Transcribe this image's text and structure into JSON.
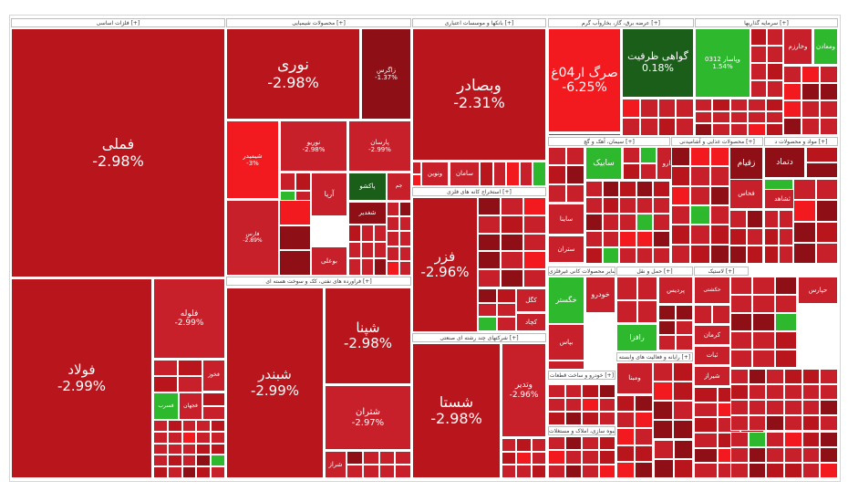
{
  "colors": {
    "strong_red": "#b8161c",
    "mid_red": "#c8202a",
    "dark_red": "#8e0f15",
    "bright_red": "#f21a1f",
    "dark_green": "#1a5e1a",
    "green": "#2eb82e",
    "grid_line": "#ffffff"
  },
  "chart_data": {
    "type": "heatmap",
    "sectors": [
      {
        "label": "فلزات اساسی [+]"
      },
      {
        "label": "محصولات شیمیایی [+]"
      },
      {
        "label": "بانکها و موسسات اعتباری [+]"
      },
      {
        "label": "عرضه برق، گاز، بخاروآب گرم [+]"
      },
      {
        "label": "سرمایه گذاریها [+]"
      },
      {
        "label": "فراورده های نفتی، کک و سوخت هسته ای [+]"
      },
      {
        "label": "استخراج کانه های فلزی [+]"
      },
      {
        "label": "شرکتهای چند رشته ای صنعتی [+]"
      },
      {
        "label": "سیمان، آهک و گچ [+]"
      },
      {
        "label": "محصولات غذایی و آشامیدنی [+]"
      },
      {
        "label": "مواد و محصولات د [+]"
      },
      {
        "label": "خودرو و ساخت قطعات [+]"
      },
      {
        "label": "رایانه و فعالیت های وابسته [+]"
      },
      {
        "label": "انبوه سازی، املاک و مستغلات [+]"
      },
      {
        "label": "سایر محصولات کانی غیرفلزی [+]"
      },
      {
        "label": "حمل و نقل [+]"
      },
      {
        "label": "لاستیک [+]"
      }
    ],
    "tiles": [
      {
        "symbol": "فملی",
        "change": "-2.98%",
        "value": -2.98,
        "tone": "strong_red"
      },
      {
        "symbol": "فولاد",
        "change": "-2.99%",
        "value": -2.99,
        "tone": "strong_red"
      },
      {
        "symbol": "فلوله",
        "change": "-2.99%",
        "value": -2.99,
        "tone": "mid_red"
      },
      {
        "symbol": "فخوز",
        "change": "",
        "value": null,
        "tone": "mid_red"
      },
      {
        "symbol": "فجهان",
        "change": "",
        "value": null,
        "tone": "mid_red"
      },
      {
        "symbol": "فسرب",
        "change": "",
        "value": null,
        "tone": "green"
      },
      {
        "symbol": "نوری",
        "change": "-2.98%",
        "value": -2.98,
        "tone": "strong_red"
      },
      {
        "symbol": "زاگرس",
        "change": "-1.37%",
        "value": -1.37,
        "tone": "dark_red"
      },
      {
        "symbol": "شیمیدر",
        "change": "-3%",
        "value": -3.0,
        "tone": "bright_red"
      },
      {
        "symbol": "نوریو",
        "change": "-2.98%",
        "value": -2.98,
        "tone": "mid_red"
      },
      {
        "symbol": "پارسان",
        "change": "-2.99%",
        "value": -2.99,
        "tone": "mid_red"
      },
      {
        "symbol": "فارس",
        "change": "-2.89%",
        "value": -2.89,
        "tone": "mid_red"
      },
      {
        "symbol": "آریا",
        "change": "",
        "value": null,
        "tone": "mid_red"
      },
      {
        "symbol": "پاکشو",
        "change": "",
        "value": null,
        "tone": "dark_green"
      },
      {
        "symbol": "شغدیر",
        "change": "",
        "value": null,
        "tone": "dark_red"
      },
      {
        "symbol": "جم",
        "change": "",
        "value": null,
        "tone": "mid_red"
      },
      {
        "symbol": "بوعلی",
        "change": "",
        "value": null,
        "tone": "mid_red"
      },
      {
        "symbol": "وبصادر",
        "change": "-2.31%",
        "value": -2.31,
        "tone": "strong_red"
      },
      {
        "symbol": "سامان",
        "change": "",
        "value": null,
        "tone": "mid_red"
      },
      {
        "symbol": "ونوین",
        "change": "",
        "value": null,
        "tone": "mid_red"
      },
      {
        "symbol": "صرگ ار04غ",
        "change": "-6.25%",
        "value": -6.25,
        "tone": "bright_red"
      },
      {
        "symbol": "گواهی ظرفیت",
        "change": "0.18%",
        "value": 0.18,
        "tone": "dark_green"
      },
      {
        "symbol": "وپاسار 0312",
        "change": "1.54%",
        "value": 1.54,
        "tone": "green"
      },
      {
        "symbol": "وخارزم",
        "change": "",
        "value": null,
        "tone": "mid_red"
      },
      {
        "symbol": "ومعادن",
        "change": "",
        "value": null,
        "tone": "green"
      },
      {
        "symbol": "شپنا",
        "change": "-2.98%",
        "value": -2.98,
        "tone": "strong_red"
      },
      {
        "symbol": "شبندر",
        "change": "-2.99%",
        "value": -2.99,
        "tone": "strong_red"
      },
      {
        "symbol": "شتران",
        "change": "-2.97%",
        "value": -2.97,
        "tone": "mid_red"
      },
      {
        "symbol": "شراز",
        "change": "",
        "value": null,
        "tone": "mid_red"
      },
      {
        "symbol": "فزر",
        "change": "-2.96%",
        "value": -2.96,
        "tone": "strong_red"
      },
      {
        "symbol": "کگل",
        "change": "",
        "value": null,
        "tone": "mid_red"
      },
      {
        "symbol": "کچاد",
        "change": "",
        "value": null,
        "tone": "mid_red"
      },
      {
        "symbol": "شستا",
        "change": "-2.98%",
        "value": -2.98,
        "tone": "strong_red"
      },
      {
        "symbol": "وتدیر",
        "change": "-2.96%",
        "value": -2.96,
        "tone": "mid_red"
      },
      {
        "symbol": "ساینا",
        "change": "",
        "value": null,
        "tone": "mid_red"
      },
      {
        "symbol": "ستران",
        "change": "",
        "value": null,
        "tone": "mid_red"
      },
      {
        "symbol": "سابیک",
        "change": "",
        "value": null,
        "tone": "green"
      },
      {
        "symbol": "دتماد",
        "change": "",
        "value": null,
        "tone": "dark_red"
      },
      {
        "symbol": "غشهداب",
        "change": "",
        "value": null,
        "tone": "green"
      },
      {
        "symbol": "زقیام",
        "change": "",
        "value": null,
        "tone": "dark_red"
      },
      {
        "symbol": "خگستر",
        "change": "",
        "value": null,
        "tone": "green"
      },
      {
        "symbol": "خودرو",
        "change": "",
        "value": null,
        "tone": "mid_red"
      },
      {
        "symbol": "رافزا",
        "change": "",
        "value": null,
        "tone": "green"
      },
      {
        "symbol": "ومبنا",
        "change": "",
        "value": null,
        "tone": "mid_red"
      },
      {
        "symbol": "حکشتی",
        "change": "",
        "value": null,
        "tone": "mid_red"
      },
      {
        "symbol": "کرمان",
        "change": "",
        "value": null,
        "tone": "mid_red"
      },
      {
        "symbol": "شیراز",
        "change": "",
        "value": null,
        "tone": "mid_red"
      },
      {
        "symbol": "ثبات",
        "change": "",
        "value": null,
        "tone": "mid_red"
      },
      {
        "symbol": "ثشاهد",
        "change": "",
        "value": null,
        "tone": "mid_red"
      },
      {
        "symbol": "حپارس",
        "change": "",
        "value": null,
        "tone": "mid_red"
      },
      {
        "symbol": "فخاس",
        "change": "",
        "value": null,
        "tone": "mid_red"
      },
      {
        "symbol": "پردیس",
        "change": "",
        "value": null,
        "tone": "mid_red"
      },
      {
        "symbol": "سمنا",
        "change": "",
        "value": null,
        "tone": "mid_red"
      },
      {
        "symbol": "رابد",
        "change": "",
        "value": null,
        "tone": "mid_red"
      },
      {
        "symbol": "دارو",
        "change": "",
        "value": null,
        "tone": "mid_red"
      },
      {
        "symbol": "بپاس",
        "change": "",
        "value": null,
        "tone": "mid_red"
      }
    ]
  }
}
